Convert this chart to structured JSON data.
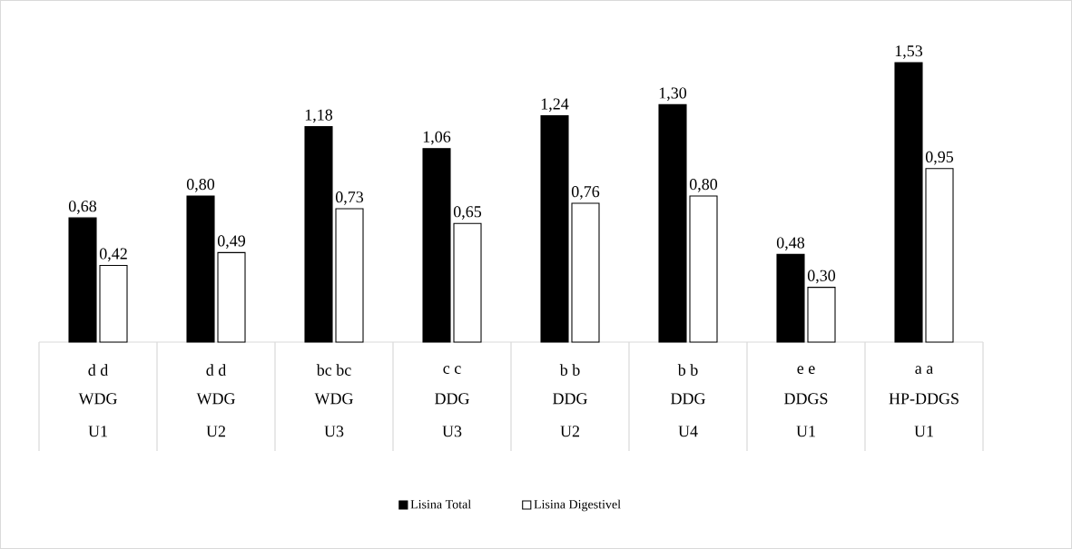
{
  "chart_data": {
    "type": "bar",
    "categories": [
      "WDG U1",
      "WDG U2",
      "WDG U3",
      "DDG U3",
      "DDG U2",
      "DDG U4",
      "DDGS U1",
      "HP-DDGS U1"
    ],
    "series": [
      {
        "name": "Lisina Total",
        "color": "#000000",
        "values": [
          0.68,
          0.8,
          1.18,
          1.06,
          1.24,
          1.3,
          0.48,
          1.53
        ],
        "value_labels": [
          "0,68",
          "0,80",
          "1,18",
          "1,06",
          "1,24",
          "1,30",
          "0,48",
          "1,53"
        ]
      },
      {
        "name": "Lisina Digestivel",
        "color": "#ffffff",
        "values": [
          0.42,
          0.49,
          0.73,
          0.65,
          0.76,
          0.8,
          0.3,
          0.95
        ],
        "value_labels": [
          "0,42",
          "0,49",
          "0,73",
          "0,65",
          "0,76",
          "0,80",
          "0,30",
          "0,95"
        ]
      }
    ],
    "annotations": [
      "d d",
      "d d",
      "bc bc",
      "c c",
      "b b",
      "b b",
      "e e",
      "a a"
    ],
    "legend": "bottom"
  }
}
